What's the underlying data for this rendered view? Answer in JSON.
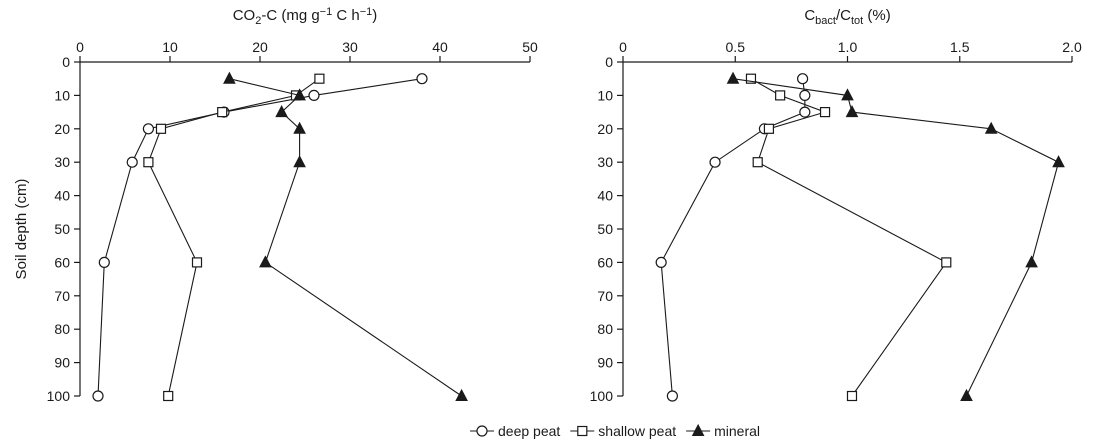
{
  "chart_data": [
    {
      "type": "line",
      "xlabel": "CO2-C (mg g−1 C h−1)",
      "xlabel_parts": [
        "CO",
        "2",
        "-C (mg g",
        "−1",
        " C h",
        "−1",
        ")"
      ],
      "ylabel": "Soil depth (cm)",
      "x_axis_position": "top",
      "xlim": [
        0,
        50
      ],
      "ylim": [
        100,
        0
      ],
      "y_inverted": true,
      "x_ticks": [
        "0",
        "10",
        "20",
        "30",
        "40",
        "50"
      ],
      "y_ticks": [
        "0",
        "10",
        "20",
        "30",
        "40",
        "50",
        "60",
        "70",
        "80",
        "90",
        "100"
      ],
      "series": [
        {
          "name": "deep peat",
          "marker": "open-circle",
          "points": [
            [
              38,
              5
            ],
            [
              26,
              10
            ],
            [
              16,
              15
            ],
            [
              7.6,
              20
            ],
            [
              5.8,
              30
            ],
            [
              2.7,
              60
            ],
            [
              2,
              100
            ]
          ]
        },
        {
          "name": "shallow peat",
          "marker": "open-square",
          "points": [
            [
              26.6,
              5
            ],
            [
              24,
              10
            ],
            [
              15.8,
              15
            ],
            [
              9,
              20
            ],
            [
              7.6,
              30
            ],
            [
              13,
              60
            ],
            [
              9.8,
              100
            ]
          ]
        },
        {
          "name": "mineral",
          "marker": "filled-triangle",
          "points": [
            [
              16.6,
              5
            ],
            [
              24.4,
              10
            ],
            [
              22.4,
              15
            ],
            [
              24.4,
              20
            ],
            [
              24.4,
              30
            ],
            [
              20.6,
              60
            ],
            [
              42.4,
              100
            ]
          ]
        }
      ]
    },
    {
      "type": "line",
      "xlabel": "Cbact/Ctot (%)",
      "xlabel_parts": [
        "C",
        "bact",
        "/C",
        "tot",
        " (%)"
      ],
      "ylabel": "",
      "x_axis_position": "top",
      "xlim": [
        0,
        2.0
      ],
      "ylim": [
        100,
        0
      ],
      "y_inverted": true,
      "x_ticks": [
        "0",
        "0.5",
        "1.0",
        "1.5",
        "2.0"
      ],
      "y_ticks": [
        "0",
        "10",
        "20",
        "30",
        "40",
        "50",
        "60",
        "70",
        "80",
        "90",
        "100"
      ],
      "series": [
        {
          "name": "deep peat",
          "marker": "open-circle",
          "points": [
            [
              0.8,
              5
            ],
            [
              0.81,
              10
            ],
            [
              0.81,
              15
            ],
            [
              0.63,
              20
            ],
            [
              0.41,
              30
            ],
            [
              0.17,
              60
            ],
            [
              0.22,
              100
            ]
          ]
        },
        {
          "name": "shallow peat",
          "marker": "open-square",
          "points": [
            [
              0.57,
              5
            ],
            [
              0.7,
              10
            ],
            [
              0.9,
              15
            ],
            [
              0.65,
              20
            ],
            [
              0.6,
              30
            ],
            [
              1.44,
              60
            ],
            [
              1.02,
              100
            ]
          ]
        },
        {
          "name": "mineral",
          "marker": "filled-triangle",
          "points": [
            [
              0.49,
              5
            ],
            [
              1.0,
              10
            ],
            [
              1.02,
              15
            ],
            [
              1.64,
              20
            ],
            [
              1.94,
              30
            ],
            [
              1.82,
              60
            ],
            [
              1.53,
              100
            ]
          ]
        }
      ]
    }
  ],
  "legend": {
    "placement": "bottom-center",
    "items": [
      {
        "label": "deep peat",
        "marker": "open-circle"
      },
      {
        "label": "shallow peat",
        "marker": "open-square"
      },
      {
        "label": "mineral",
        "marker": "filled-triangle"
      }
    ]
  }
}
